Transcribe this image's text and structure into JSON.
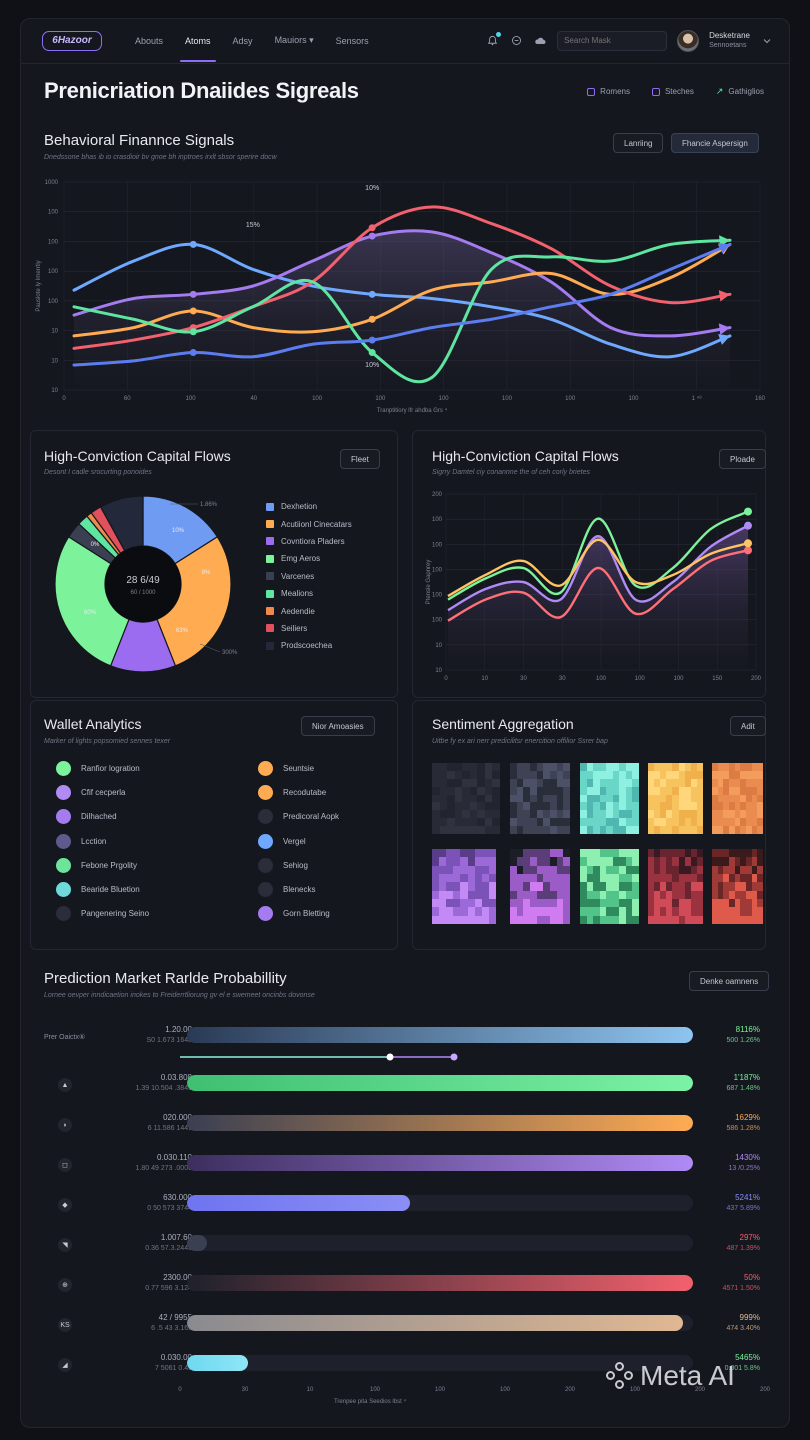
{
  "nav": {
    "logo": "6Hazoor",
    "items": [
      {
        "label": "Abouts",
        "active": false
      },
      {
        "label": "Atoms",
        "active": true
      },
      {
        "label": "Adsy",
        "active": false
      },
      {
        "label": "Mauiors ▾",
        "active": false
      },
      {
        "label": "Sensors",
        "active": false
      }
    ],
    "search_placeholder": "Search Mask",
    "user_name": "Desketrane",
    "user_sub": "Sennoetans"
  },
  "header": {
    "title": "Prenicriation Dnaiides Sigreals",
    "actions": [
      "Romens",
      "Steches",
      "Gathiglios"
    ]
  },
  "behavioral": {
    "title": "Behavioral Finannce Signals",
    "subtitle": "Dnedssone bhas ib io crasdioir bv gnoe bh inptroes irxlt sbsor sperire docw",
    "btn_secondary": "Lanriing",
    "btn_primary": "Fhancie Aspersign",
    "xlabel": "Tranptitiory lfr ahdba Grs ⁴",
    "ylabel": "Pauslote Iy Imerrtiy",
    "annotations": [
      "10%",
      "15%",
      "10%"
    ]
  },
  "chart_data": [
    {
      "type": "line",
      "title": "Behavioral Finannce Signals",
      "x_ticks": [
        "0",
        "60",
        "100",
        "40",
        "100",
        "100",
        "100",
        "100",
        "100",
        "100",
        "1 ⁴⁸",
        "160"
      ],
      "y_ticks": [
        "1000",
        "100",
        "100",
        "100",
        "100",
        "10",
        "10",
        "10"
      ],
      "series": [
        {
          "color": "#6fa8ff",
          "values": [
            48,
            62,
            70,
            58,
            50,
            46,
            44,
            40,
            34,
            22,
            16,
            26
          ]
        },
        {
          "color": "#a47cf0",
          "values": [
            36,
            44,
            46,
            50,
            62,
            74,
            76,
            66,
            52,
            30,
            26,
            30
          ]
        },
        {
          "color": "#ffab52",
          "values": [
            26,
            30,
            38,
            30,
            28,
            34,
            48,
            52,
            56,
            46,
            54,
            70
          ]
        },
        {
          "color": "#f2616d",
          "values": [
            20,
            24,
            30,
            40,
            52,
            78,
            88,
            80,
            68,
            50,
            42,
            46
          ]
        },
        {
          "color": "#5ee6a0",
          "values": [
            40,
            34,
            28,
            40,
            52,
            18,
            6,
            58,
            64,
            62,
            70,
            72
          ]
        },
        {
          "color": "#5b7df0",
          "values": [
            12,
            14,
            18,
            16,
            22,
            24,
            30,
            34,
            40,
            46,
            58,
            70
          ]
        }
      ]
    },
    {
      "type": "pie",
      "title": "High-Conviction Capital Flows",
      "center_value": "28 6/49",
      "center_sub": "60 / 1000",
      "slice_labels": [
        "10%",
        "8%",
        "60%",
        "63%",
        "0%"
      ],
      "outer_labels": [
        "1.86%",
        "300%"
      ],
      "slices": [
        {
          "label": "Dexhetion",
          "value": 16,
          "color": "#6f9cf2"
        },
        {
          "label": "Acutiionl Cinecatars",
          "value": 28,
          "color": "#ffab52"
        },
        {
          "label": "Covntiora Pladers",
          "value": 12,
          "color": "#9b6cf0"
        },
        {
          "label": "Emg Aeros",
          "value": 28,
          "color": "#7cf29a"
        },
        {
          "label": "Varcenes",
          "value": 3,
          "color": "#3a3f52"
        },
        {
          "label": "Mealions",
          "value": 2,
          "color": "#5ee6a0"
        },
        {
          "label": "Aedendie",
          "value": 1,
          "color": "#f08a4b"
        },
        {
          "label": "Seiliers",
          "value": 2,
          "color": "#e2505c"
        },
        {
          "label": "Prodscoechea",
          "value": 8,
          "color": "#23283a"
        }
      ]
    },
    {
      "type": "line",
      "title": "High-Conviction Capital Flows",
      "x_ticks": [
        "0",
        "10",
        "30",
        "30",
        "100",
        "100",
        "100",
        "150",
        "200"
      ],
      "y_ticks": [
        "200",
        "100",
        "100",
        "100",
        "100",
        "100",
        "10",
        "10"
      ],
      "series": [
        {
          "color": "#7cf29a",
          "values": [
            40,
            52,
            58,
            44,
            86,
            48,
            58,
            80,
            90
          ]
        },
        {
          "color": "#b08af5",
          "values": [
            34,
            46,
            50,
            40,
            76,
            40,
            50,
            70,
            82
          ]
        },
        {
          "color": "#ff6f78",
          "values": [
            28,
            40,
            44,
            30,
            58,
            32,
            46,
            62,
            68
          ]
        },
        {
          "color": "#ffc462",
          "values": [
            42,
            54,
            62,
            48,
            74,
            50,
            54,
            66,
            72
          ]
        }
      ]
    }
  ],
  "flows": {
    "title": "High-Conviction Capital Flows",
    "subtitle": "Desont I cadle srocurting ponoides",
    "button": "Fleet"
  },
  "flows_line": {
    "title": "High-Conviction Capital Flows",
    "subtitle": "Sigrry Damtel ciy conannne the of ceh corly brietes",
    "button": "Ploade",
    "ylabel": "Ptensle Gapnrey"
  },
  "wallet": {
    "title": "Wallet Analytics",
    "subtitle": "Marker of lights popsomied sennes texer",
    "button": "Nior Amoasies",
    "left": [
      {
        "label": "Ranfior logration",
        "color": "#7cf29a"
      },
      {
        "label": "Cfif cecperla",
        "color": "#b08af5"
      },
      {
        "label": "Dilhached",
        "color": "#a47cf0"
      },
      {
        "label": "Lcction",
        "color": "#5d5a8e"
      },
      {
        "label": "Febone Prgolity",
        "color": "#6fe39a"
      },
      {
        "label": "Bearide Bluetion",
        "color": "#6fd8d8"
      },
      {
        "label": "Pangenering Seino",
        "color": "#2a2d3a"
      }
    ],
    "right": [
      {
        "label": "Seuntsie",
        "color": "#ffab52"
      },
      {
        "label": "Recodutabe",
        "color": "#ffab52"
      },
      {
        "label": "Predicoral Aopk",
        "color": "#2a2d3a"
      },
      {
        "label": "Vergel",
        "color": "#6fa8ff"
      },
      {
        "label": "Sehiog",
        "color": "#2a2d3a"
      },
      {
        "label": "Blenecks",
        "color": "#2a2d3a"
      },
      {
        "label": "Gorn Bletting",
        "color": "#a47cf0"
      }
    ]
  },
  "sentiment": {
    "title": "Sentiment Aggregation",
    "subtitle": "Uitbe fy ex ari nerr predicilitsr enercition offilior Ssrer bap",
    "button": "Adit",
    "tiles": [
      {
        "palette": [
          "#1c1e27",
          "#22252f",
          "#282b36",
          "#30333f"
        ]
      },
      {
        "palette": [
          "#1a1c24",
          "#2a2d3a",
          "#3e4254",
          "#4d5168"
        ]
      },
      {
        "palette": [
          "#2f8a8a",
          "#4fb7b0",
          "#6ad6c8",
          "#8ef0e0"
        ]
      },
      {
        "palette": [
          "#e29a3c",
          "#f0b04c",
          "#f6c35e",
          "#ffd67a"
        ]
      },
      {
        "palette": [
          "#c56a3a",
          "#dc7c44",
          "#ea8c50",
          "#f39c5c"
        ]
      },
      {
        "palette": [
          "#5a3d8a",
          "#7a52b8",
          "#9b6ad8",
          "#c38af5"
        ]
      },
      {
        "palette": [
          "#1c1e27",
          "#5b3d7a",
          "#9b5cc8",
          "#d07cf0"
        ]
      },
      {
        "palette": [
          "#1c4a3a",
          "#2f8a5e",
          "#52c48a",
          "#8ef0b0"
        ]
      },
      {
        "palette": [
          "#3a1a22",
          "#6a2430",
          "#9a3240",
          "#d14a58"
        ]
      },
      {
        "palette": [
          "#3a1a1a",
          "#6a2626",
          "#a03a36",
          "#e05a4c"
        ]
      }
    ]
  },
  "prediction": {
    "title": "Prediction Market Rarlde Probabillity",
    "subtitle": "Lornee oevper inndicaetion inokes to Freiderrtliorung gv el e swemeet oncinbs dovonse",
    "button": "Denke oamnens",
    "row_label": "Prer Oaictx⑥",
    "x_ticks": [
      "0",
      "30",
      "10",
      "100",
      "100",
      "100",
      "200",
      "100",
      "200",
      "200",
      "200"
    ],
    "xlabel": "Trenpee pita Seedios lbst ⁴",
    "slider_a": 0.52,
    "slider_b": 0.68,
    "rows": [
      {
        "icon": "",
        "v1": "1.20.00",
        "v2": "S0 1.673 1640",
        "fill": 1.0,
        "color_a": "#2a3a55",
        "color_b": "#8ec4f0",
        "p1": "8116%",
        "p2": "500 1.26%",
        "pcolor": "#7cf29a"
      },
      {
        "icon": "▲",
        "v1": "0.03.808",
        "v2": "1.39 10.504 .3845",
        "fill": 1.0,
        "color_a": "#3fbf72",
        "color_b": "#7cf2a6",
        "p1": "1'187%",
        "p2": "687 1.48%",
        "pcolor": "#7cf29a"
      },
      {
        "icon": "◗",
        "v1": "020.000",
        "v2": "6 11.586 1449",
        "fill": 1.0,
        "color_a": "#3a3f52",
        "color_b": "#ffab52",
        "p1": "1629%",
        "p2": "586 1.28%",
        "pcolor": "#ffab52"
      },
      {
        "icon": "◻",
        "v1": "0.030.110",
        "v2": "1.80 49 273 .0000",
        "fill": 1.0,
        "color_a": "#3d2e5e",
        "color_b": "#b08af5",
        "p1": "1430%",
        "p2": "13 /0.25%",
        "pcolor": "#b08af5"
      },
      {
        "icon": "◆",
        "v1": "630.000",
        "v2": "0 50 573 3744",
        "fill": 0.44,
        "color_a": "#6f74f0",
        "color_b": "#8a8ef5",
        "p1": "5241%",
        "p2": "437 5.89%",
        "pcolor": "#8a8ef5"
      },
      {
        "icon": "◥",
        "v1": "1.007.60",
        "v2": "0.36 57.3.2446",
        "fill": 0.04,
        "color_a": "#3a3f52",
        "color_b": "#3a3f52",
        "p1": "297%",
        "p2": "487 1.39%",
        "pcolor": "#f2616d"
      },
      {
        "icon": "⊕",
        "v1": "2300.00",
        "v2": "0.77 596 3.124",
        "fill": 1.0,
        "color_a": "#1e212b",
        "color_b": "#f2616d",
        "p1": "50%",
        "p2": "4571 1.50%",
        "pcolor": "#f2616d"
      },
      {
        "icon": "KS",
        "v1": "42 / 9955",
        "v2": "6 .5 43 3.165",
        "fill": 0.98,
        "color_a": "#8a8a90",
        "color_b": "#e0b892",
        "p1": "999%",
        "p2": "474 3.40%",
        "pcolor": "#e0b892"
      },
      {
        "icon": "◢",
        "v1": "0.030.00",
        "v2": "7 5061 0.45",
        "fill": 0.12,
        "color_a": "#6fd8f0",
        "color_b": "#8ee6f5",
        "p1": "5465%",
        "p2": "0.001 5.8%",
        "pcolor": "#7cf29a"
      }
    ]
  },
  "watermark": "Meta AI"
}
